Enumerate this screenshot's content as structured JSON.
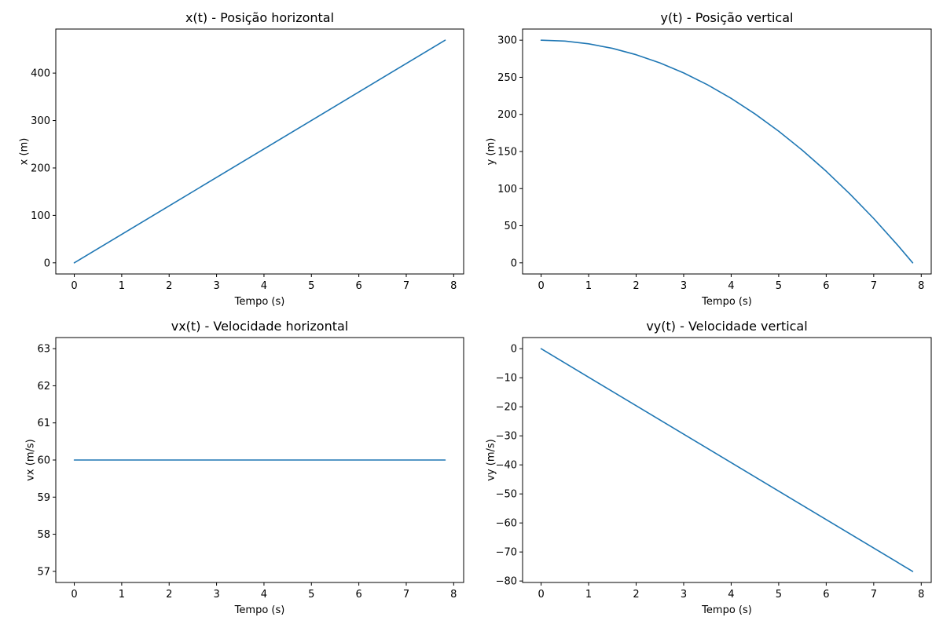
{
  "chart_data": [
    {
      "type": "line",
      "title": "x(t) - Posição horizontal",
      "xlabel": "Tempo (s)",
      "ylabel": "x (m)",
      "xlim": [
        -0.39,
        8.21
      ],
      "ylim": [
        -23.5,
        492.9
      ],
      "xticks": [
        0,
        1,
        2,
        3,
        4,
        5,
        6,
        7,
        8
      ],
      "yticks": [
        0,
        100,
        200,
        300,
        400
      ],
      "xtick_labels": [
        "0",
        "1",
        "2",
        "3",
        "4",
        "5",
        "6",
        "7",
        "8"
      ],
      "ytick_labels": [
        "0",
        "100",
        "200",
        "300",
        "400"
      ],
      "grid": false,
      "series": [
        {
          "color": "#1f77b4",
          "x": [
            0,
            7.82
          ],
          "y": [
            0,
            469.4
          ]
        }
      ]
    },
    {
      "type": "line",
      "title": "y(t) - Posição vertical",
      "xlabel": "Tempo (s)",
      "ylabel": "y (m)",
      "xlim": [
        -0.39,
        8.21
      ],
      "ylim": [
        -15,
        315
      ],
      "xticks": [
        0,
        1,
        2,
        3,
        4,
        5,
        6,
        7,
        8
      ],
      "yticks": [
        0,
        50,
        100,
        150,
        200,
        250,
        300
      ],
      "xtick_labels": [
        "0",
        "1",
        "2",
        "3",
        "4",
        "5",
        "6",
        "7",
        "8"
      ],
      "ytick_labels": [
        "0",
        "50",
        "100",
        "150",
        "200",
        "250",
        "300"
      ],
      "grid": false,
      "series": [
        {
          "color": "#1f77b4",
          "x": [
            0,
            0.5,
            1,
            1.5,
            2,
            2.5,
            3,
            3.5,
            4,
            4.5,
            5,
            5.5,
            6,
            6.5,
            7,
            7.5,
            7.82
          ],
          "y": [
            300,
            298.8,
            295.1,
            289.0,
            280.4,
            269.4,
            255.9,
            240.0,
            221.6,
            200.7,
            177.4,
            151.6,
            123.4,
            92.7,
            59.7,
            24.1,
            0
          ]
        }
      ]
    },
    {
      "type": "line",
      "title": "vx(t) - Velocidade horizontal",
      "xlabel": "Tempo (s)",
      "ylabel": "vx (m/s)",
      "xlim": [
        -0.39,
        8.21
      ],
      "ylim": [
        56.7,
        63.3
      ],
      "xticks": [
        0,
        1,
        2,
        3,
        4,
        5,
        6,
        7,
        8
      ],
      "yticks": [
        57,
        58,
        59,
        60,
        61,
        62,
        63
      ],
      "xtick_labels": [
        "0",
        "1",
        "2",
        "3",
        "4",
        "5",
        "6",
        "7",
        "8"
      ],
      "ytick_labels": [
        "57",
        "58",
        "59",
        "60",
        "61",
        "62",
        "63"
      ],
      "grid": false,
      "series": [
        {
          "color": "#1f77b4",
          "x": [
            0,
            7.82
          ],
          "y": [
            60,
            60
          ]
        }
      ]
    },
    {
      "type": "line",
      "title": "vy(t) - Velocidade vertical",
      "xlabel": "Tempo (s)",
      "ylabel": "vy (m/s)",
      "xlim": [
        -0.39,
        8.21
      ],
      "ylim": [
        -80.5,
        3.85
      ],
      "xticks": [
        0,
        1,
        2,
        3,
        4,
        5,
        6,
        7,
        8
      ],
      "yticks": [
        0,
        -10,
        -20,
        -30,
        -40,
        -50,
        -60,
        -70,
        -80
      ],
      "xtick_labels": [
        "0",
        "1",
        "2",
        "3",
        "4",
        "5",
        "6",
        "7",
        "8"
      ],
      "ytick_labels": [
        "0",
        "−10",
        "−20",
        "−30",
        "−40",
        "−50",
        "−60",
        "−70",
        "−80"
      ],
      "grid": false,
      "series": [
        {
          "color": "#1f77b4",
          "x": [
            0,
            7.82
          ],
          "y": [
            0,
            -76.7
          ]
        }
      ]
    }
  ]
}
